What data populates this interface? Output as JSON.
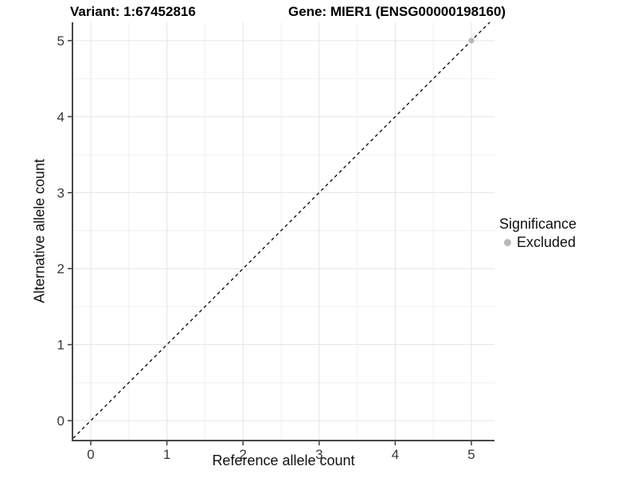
{
  "chart_data": {
    "type": "scatter",
    "titles": {
      "left": "Variant: 1:67452816",
      "right": "Gene: MIER1 (ENSG00000198160)"
    },
    "xlabel": "Reference allele count",
    "ylabel": "Alternative allele count",
    "xlim": [
      -0.25,
      5.25
    ],
    "ylim": [
      -0.25,
      5.25
    ],
    "xticks": [
      "0",
      "1",
      "2",
      "3",
      "4",
      "5"
    ],
    "yticks": [
      "0",
      "1",
      "2",
      "3",
      "4",
      "5"
    ],
    "grid": {
      "major": [
        0,
        1,
        2,
        3,
        4,
        5
      ],
      "minor": [
        0.5,
        1.5,
        2.5,
        3.5,
        4.5
      ],
      "major_color": "#e4e4e4",
      "minor_color": "#f1f1f1"
    },
    "identity_line": {
      "slope": 1,
      "intercept": 0,
      "style": "dashed",
      "color": "#000000"
    },
    "series": [
      {
        "name": "Excluded",
        "color": "#b9b9b9",
        "points": [
          {
            "x": 5,
            "y": 5
          }
        ]
      }
    ],
    "legend": {
      "title": "Significance",
      "position": "right",
      "items": [
        {
          "label": "Excluded",
          "color": "#b9b9b9",
          "marker": "circle"
        }
      ]
    },
    "axis_color": "#474747",
    "tick_label_color": "#383838"
  }
}
